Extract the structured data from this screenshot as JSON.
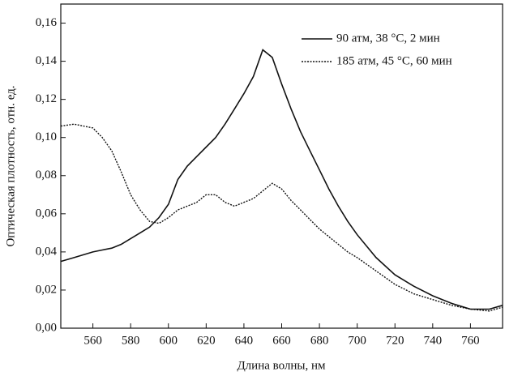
{
  "chart_data": {
    "type": "line",
    "xlabel": "Длина волны, нм",
    "ylabel": "Оптическая плотность, отн. ед.",
    "x": [
      543,
      550,
      560,
      565,
      570,
      575,
      580,
      585,
      590,
      595,
      600,
      605,
      610,
      615,
      620,
      625,
      630,
      635,
      640,
      645,
      650,
      655,
      660,
      665,
      670,
      675,
      680,
      685,
      690,
      695,
      700,
      710,
      720,
      730,
      740,
      750,
      760,
      770,
      777
    ],
    "series": [
      {
        "name": "90 атм, 38 °C, 2 мин",
        "color": "#111111",
        "style": "solid",
        "values": [
          0.035,
          0.037,
          0.04,
          0.041,
          0.042,
          0.044,
          0.047,
          0.05,
          0.053,
          0.058,
          0.065,
          0.078,
          0.085,
          0.09,
          0.095,
          0.1,
          0.107,
          0.115,
          0.123,
          0.132,
          0.146,
          0.142,
          0.128,
          0.115,
          0.103,
          0.093,
          0.083,
          0.073,
          0.064,
          0.056,
          0.049,
          0.037,
          0.028,
          0.022,
          0.017,
          0.013,
          0.01,
          0.01,
          0.012
        ]
      },
      {
        "name": "185 атм, 45 °C, 60 мин",
        "color": "#111111",
        "style": "dashed",
        "values": [
          0.106,
          0.107,
          0.105,
          0.1,
          0.093,
          0.082,
          0.07,
          0.062,
          0.056,
          0.055,
          0.058,
          0.062,
          0.064,
          0.066,
          0.07,
          0.07,
          0.066,
          0.064,
          0.066,
          0.068,
          0.072,
          0.076,
          0.073,
          0.067,
          0.062,
          0.057,
          0.052,
          0.048,
          0.044,
          0.04,
          0.037,
          0.03,
          0.023,
          0.018,
          0.015,
          0.012,
          0.01,
          0.009,
          0.011
        ]
      }
    ],
    "xlim": [
      543,
      777
    ],
    "xticks": [
      560,
      580,
      600,
      620,
      640,
      660,
      680,
      700,
      720,
      740,
      760
    ],
    "ylim": [
      0,
      0.17
    ],
    "yticks": [
      {
        "value": 0,
        "label": "0,00"
      },
      {
        "value": 0.02,
        "label": "0,02"
      },
      {
        "value": 0.04,
        "label": "0,04"
      },
      {
        "value": 0.06,
        "label": "0,06"
      },
      {
        "value": 0.08,
        "label": "0,08"
      },
      {
        "value": 0.1,
        "label": "0,10"
      },
      {
        "value": 0.12,
        "label": "0,12"
      },
      {
        "value": 0.14,
        "label": "0,14"
      },
      {
        "value": 0.16,
        "label": "0,16"
      }
    ],
    "legend": "upper right"
  }
}
